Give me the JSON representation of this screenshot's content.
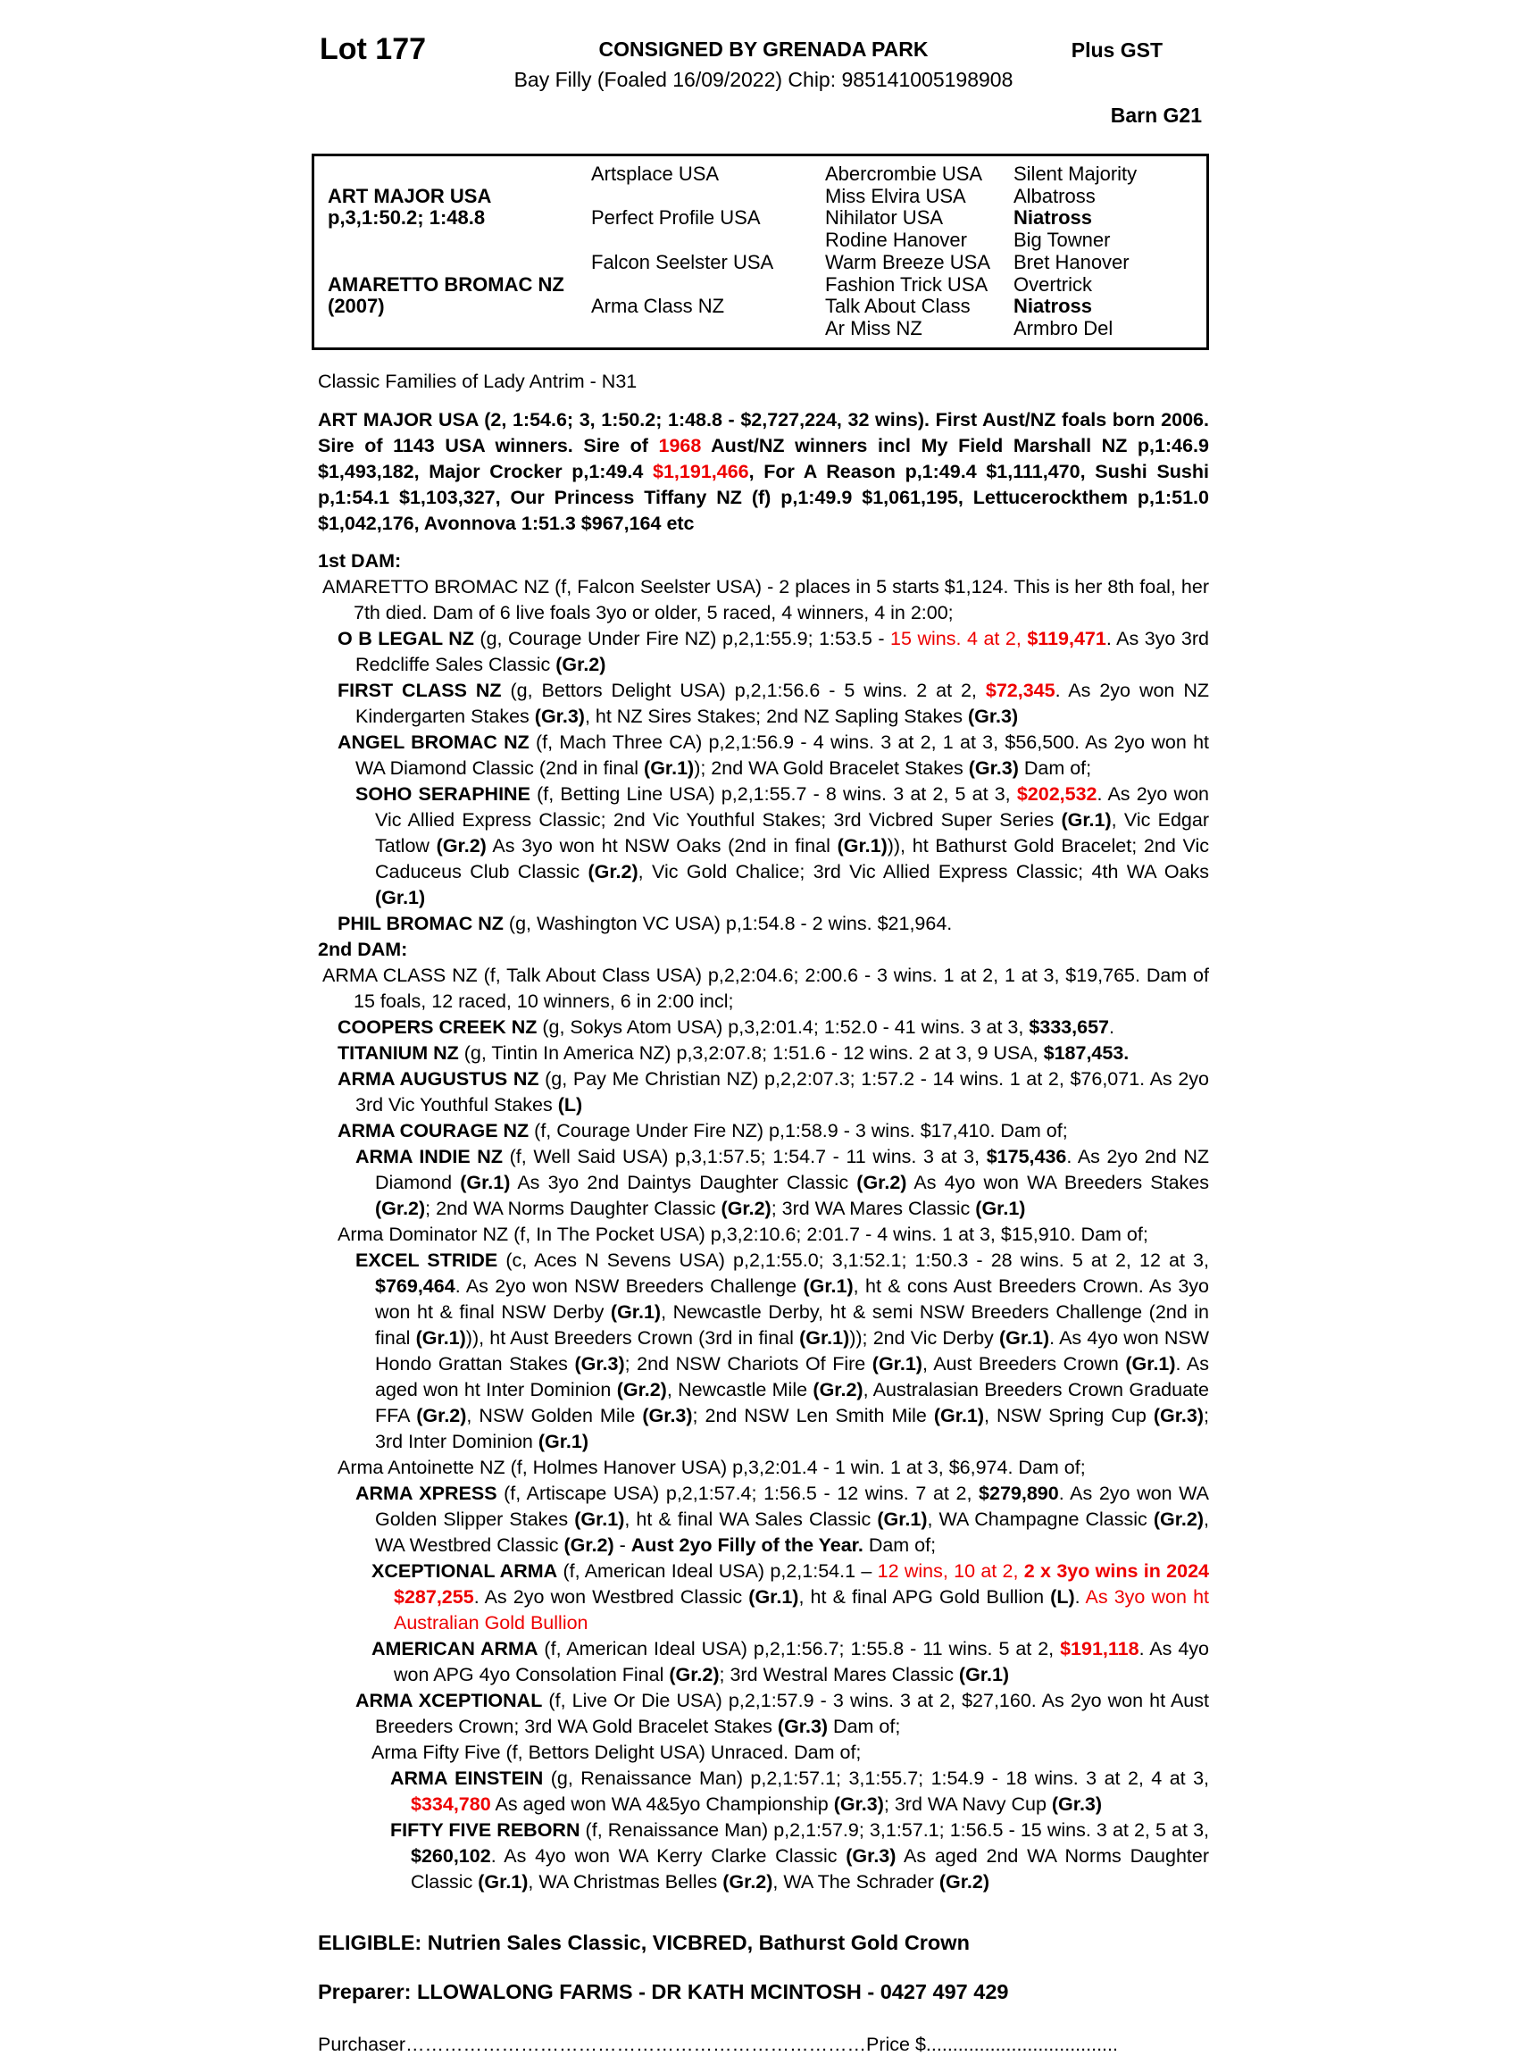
{
  "colors": {
    "accent_red": "#ee0000",
    "text": "#000000",
    "background": "#ffffff"
  },
  "header": {
    "lot": "Lot 177",
    "consigned": "CONSIGNED BY GRENADA PARK",
    "plus_gst": "Plus GST",
    "foal_line": "Bay Filly (Foaled 16/09/2022) Chip: 985141005198908",
    "barn": "Barn G21"
  },
  "pedigree": {
    "rows": [
      [
        "",
        "Artsplace USA",
        "Abercrombie USA",
        "Silent Majority"
      ],
      [
        "ART MAJOR USA",
        "",
        "Miss Elvira USA",
        "Albatross"
      ],
      [
        "p,3,1:50.2; 1:48.8",
        "Perfect Profile USA",
        "Nihilator USA",
        "Niatross"
      ],
      [
        "",
        "",
        "Rodine Hanover",
        "Big Towner"
      ],
      [
        "",
        "Falcon Seelster USA",
        "Warm Breeze USA",
        "Bret Hanover"
      ],
      [
        "AMARETTO BROMAC NZ",
        "",
        "Fashion Trick USA",
        "Overtrick"
      ],
      [
        "(2007)",
        "Arma Class NZ",
        "Talk About Class",
        "Niatross"
      ],
      [
        "",
        "",
        "Ar Miss NZ",
        "Armbro Del"
      ]
    ]
  },
  "family_line": "Classic Families of Lady Antrim - N31",
  "sire_paragraph": [
    {
      "t": "ART MAJOR USA (2, 1:54.6; 3, 1:50.2; 1:48.8 - $2,727,224, 32 wins). First Aust/NZ foals born 2006. Sire of 1143 USA winners. Sire of ",
      "b": true
    },
    {
      "t": "1968",
      "b": true,
      "r": true
    },
    {
      "t": " Aust/NZ winners incl My Field Marshall NZ p,1:46.9 $1,493,182, Major Crocker p,1:49.4 ",
      "b": true
    },
    {
      "t": "$1,191,466",
      "b": true,
      "r": true
    },
    {
      "t": ", For A Reason p,1:49.4 $1,111,470, Sushi Sushi p,1:54.1 $1,103,327, Our Princess Tiffany NZ (f) p,1:49.9 $1,061,195, Lettucerockthem p,1:51.0 $1,042,176, Avonnova 1:51.3 $967,164 etc",
      "b": true
    }
  ],
  "dams": [
    {
      "heading": "1st DAM:",
      "entries": [
        {
          "segments": [
            {
              "t": "AMARETTO BROMAC NZ (f, Falcon Seelster USA) - 2 places in 5 starts $1,124. This is her 8th foal, her 7th died. Dam of 6 live foals 3yo or older, 5 raced, 4 winners, 4 in 2:00;"
            }
          ]
        },
        {
          "segments": [
            {
              "t": "O B LEGAL NZ",
              "b": true
            },
            {
              "t": " (g, Courage Under Fire NZ) p,2,1:55.9; 1:53.5 - "
            },
            {
              "t": "15 wins. 4 at 2, ",
              "r": true
            },
            {
              "t": "$119,471",
              "b": true,
              "r": true
            },
            {
              "t": ". As 3yo 3rd Redcliffe Sales Classic "
            },
            {
              "t": "(Gr.2)",
              "b": true
            }
          ]
        },
        {
          "segments": [
            {
              "t": "FIRST CLASS NZ",
              "b": true
            },
            {
              "t": " (g, Bettors Delight USA) p,2,1:56.6 - 5 wins. 2 at 2, "
            },
            {
              "t": "$72,345",
              "b": true,
              "r": true
            },
            {
              "t": ". As 2yo won NZ Kindergarten Stakes "
            },
            {
              "t": "(Gr.3)",
              "b": true
            },
            {
              "t": ", ht NZ Sires Stakes; 2nd NZ Sapling Stakes "
            },
            {
              "t": "(Gr.3)",
              "b": true
            }
          ]
        },
        {
          "segments": [
            {
              "t": "ANGEL BROMAC NZ",
              "b": true
            },
            {
              "t": " (f, Mach Three CA) p,2,1:56.9 - 4 wins. 3 at 2, 1 at 3, $56,500. As 2yo won ht WA Diamond Classic (2nd in final "
            },
            {
              "t": "(Gr.1)",
              "b": true
            },
            {
              "t": "); 2nd WA Gold Bracelet Stakes "
            },
            {
              "t": "(Gr.3)",
              "b": true
            },
            {
              "t": " Dam of;"
            }
          ]
        },
        {
          "segments": [
            {
              "t": "SOHO SERAPHINE",
              "b": true
            },
            {
              "t": " (f, Betting Line USA) p,2,1:55.7 - 8 wins. 3 at 2, 5 at 3, "
            },
            {
              "t": "$202,532",
              "b": true,
              "r": true
            },
            {
              "t": ". As 2yo won Vic Allied Express Classic; 2nd Vic Youthful Stakes; 3rd Vicbred Super Series "
            },
            {
              "t": "(Gr.1)",
              "b": true
            },
            {
              "t": ", Vic Edgar Tatlow "
            },
            {
              "t": "(Gr.2)",
              "b": true
            },
            {
              "t": " As 3yo won ht NSW Oaks (2nd in final "
            },
            {
              "t": "(Gr.1)",
              "b": true
            },
            {
              "t": ")), ht Bathurst Gold Bracelet; 2nd Vic Caduceus Club Classic "
            },
            {
              "t": "(Gr.2)",
              "b": true
            },
            {
              "t": ", Vic Gold Chalice; 3rd Vic Allied Express Classic; 4th WA Oaks "
            },
            {
              "t": "(Gr.1)",
              "b": true
            }
          ]
        },
        {
          "segments": [
            {
              "t": "PHIL BROMAC NZ",
              "b": true
            },
            {
              "t": " (g, Washington VC USA) p,1:54.8 - 2 wins. $21,964."
            }
          ]
        }
      ]
    },
    {
      "heading": "2nd DAM:",
      "entries": [
        {
          "segments": [
            {
              "t": "ARMA CLASS NZ (f, Talk About Class USA) p,2,2:04.6; 2:00.6 - 3 wins. 1 at 2, 1 at 3, $19,765. Dam of 15 foals, 12 raced, 10 winners, 6 in 2:00 incl;"
            }
          ]
        },
        {
          "segments": [
            {
              "t": "COOPERS CREEK NZ",
              "b": true
            },
            {
              "t": " (g, Sokys Atom USA) p,3,2:01.4; 1:52.0 - 41 wins. 3 at 3, "
            },
            {
              "t": "$333,657",
              "b": true
            },
            {
              "t": "."
            }
          ]
        },
        {
          "segments": [
            {
              "t": "TITANIUM NZ",
              "b": true
            },
            {
              "t": " (g, Tintin In America NZ) p,3,2:07.8; 1:51.6 - 12 wins. 2 at 3, 9 USA, "
            },
            {
              "t": "$187,453.",
              "b": true
            }
          ]
        },
        {
          "segments": [
            {
              "t": "ARMA AUGUSTUS NZ",
              "b": true
            },
            {
              "t": " (g, Pay Me Christian NZ) p,2,2:07.3; 1:57.2 - 14 wins. 1 at 2, $76,071. As 2yo 3rd Vic Youthful Stakes "
            },
            {
              "t": "(L)",
              "b": true
            }
          ]
        },
        {
          "segments": [
            {
              "t": "ARMA COURAGE NZ",
              "b": true
            },
            {
              "t": " (f, Courage Under Fire NZ) p,1:58.9 - 3 wins. $17,410. Dam of;"
            }
          ]
        },
        {
          "segments": [
            {
              "t": "ARMA INDIE NZ",
              "b": true
            },
            {
              "t": " (f, Well Said USA) p,3,1:57.5; 1:54.7 - 11 wins. 3 at 3, "
            },
            {
              "t": "$175,436",
              "b": true
            },
            {
              "t": ". As 2yo 2nd NZ Diamond "
            },
            {
              "t": "(Gr.1)",
              "b": true
            },
            {
              "t": " As 3yo 2nd Daintys Daughter Classic "
            },
            {
              "t": "(Gr.2)",
              "b": true
            },
            {
              "t": " As 4yo won WA Breeders Stakes "
            },
            {
              "t": "(Gr.2)",
              "b": true
            },
            {
              "t": "; 2nd WA Norms Daughter Classic "
            },
            {
              "t": "(Gr.2)",
              "b": true
            },
            {
              "t": "; 3rd WA Mares Classic "
            },
            {
              "t": "(Gr.1)",
              "b": true
            }
          ]
        },
        {
          "segments": [
            {
              "t": "Arma Dominator NZ (f, In The Pocket USA) p,3,2:10.6; 2:01.7 - 4 wins. 1 at 3, $15,910. Dam of;"
            }
          ]
        },
        {
          "segments": [
            {
              "t": "EXCEL STRIDE",
              "b": true
            },
            {
              "t": " (c, Aces N Sevens USA) p,2,1:55.0; 3,1:52.1; 1:50.3 - 28 wins. 5 at 2, 12 at 3, "
            },
            {
              "t": "$769,464",
              "b": true
            },
            {
              "t": ". As 2yo won NSW Breeders Challenge "
            },
            {
              "t": "(Gr.1)",
              "b": true
            },
            {
              "t": ", ht & cons Aust Breeders Crown. As 3yo won ht & final NSW Derby "
            },
            {
              "t": "(Gr.1)",
              "b": true
            },
            {
              "t": ", Newcastle Derby, ht & semi NSW Breeders Challenge (2nd in final "
            },
            {
              "t": "(Gr.1)",
              "b": true
            },
            {
              "t": ")), ht Aust Breeders Crown (3rd in final "
            },
            {
              "t": "(Gr.1)",
              "b": true
            },
            {
              "t": ")); 2nd Vic Derby "
            },
            {
              "t": "(Gr.1)",
              "b": true
            },
            {
              "t": ". As 4yo won NSW Hondo Grattan Stakes "
            },
            {
              "t": "(Gr.3)",
              "b": true
            },
            {
              "t": "; 2nd NSW Chariots Of Fire "
            },
            {
              "t": "(Gr.1)",
              "b": true
            },
            {
              "t": ", Aust Breeders Crown "
            },
            {
              "t": "(Gr.1)",
              "b": true
            },
            {
              "t": ". As aged won ht Inter Dominion "
            },
            {
              "t": "(Gr.2)",
              "b": true
            },
            {
              "t": ", Newcastle Mile "
            },
            {
              "t": "(Gr.2)",
              "b": true
            },
            {
              "t": ", Australasian Breeders Crown Graduate FFA "
            },
            {
              "t": "(Gr.2)",
              "b": true
            },
            {
              "t": ", NSW Golden Mile "
            },
            {
              "t": "(Gr.3)",
              "b": true
            },
            {
              "t": "; 2nd NSW Len Smith Mile "
            },
            {
              "t": "(Gr.1)",
              "b": true
            },
            {
              "t": ", NSW Spring Cup "
            },
            {
              "t": "(Gr.3)",
              "b": true
            },
            {
              "t": "; 3rd Inter Dominion "
            },
            {
              "t": "(Gr.1)",
              "b": true
            }
          ]
        },
        {
          "segments": [
            {
              "t": "Arma Antoinette NZ (f, Holmes Hanover USA) p,3,2:01.4 - 1 win. 1 at 3, $6,974. Dam of;"
            }
          ]
        },
        {
          "segments": [
            {
              "t": "ARMA XPRESS",
              "b": true
            },
            {
              "t": " (f, Artiscape USA) p,2,1:57.4; 1:56.5 - 12 wins. 7 at 2, "
            },
            {
              "t": "$279,890",
              "b": true
            },
            {
              "t": ". As 2yo won WA Golden Slipper Stakes "
            },
            {
              "t": "(Gr.1)",
              "b": true
            },
            {
              "t": ", ht & final WA Sales Classic "
            },
            {
              "t": "(Gr.1)",
              "b": true
            },
            {
              "t": ", WA Champagne Classic "
            },
            {
              "t": "(Gr.2)",
              "b": true
            },
            {
              "t": ", WA Westbred Classic "
            },
            {
              "t": "(Gr.2)",
              "b": true
            },
            {
              "t": " - "
            },
            {
              "t": "Aust 2yo Filly of the Year.",
              "b": true
            },
            {
              "t": " Dam of;"
            }
          ]
        },
        {
          "segments": [
            {
              "t": "XCEPTIONAL ARMA",
              "b": true
            },
            {
              "t": " (f, American Ideal USA) p,2,1:54.1 – "
            },
            {
              "t": "12 wins, 10 at 2, ",
              "r": true
            },
            {
              "t": "2 x 3yo wins in 2024 $287,255",
              "b": true,
              "r": true
            },
            {
              "t": ". As 2yo won Westbred Classic "
            },
            {
              "t": "(Gr.1)",
              "b": true
            },
            {
              "t": ", ht & final APG Gold Bullion "
            },
            {
              "t": "(L)",
              "b": true
            },
            {
              "t": ". "
            },
            {
              "t": "As 3yo won ht Australian Gold Bullion",
              "r": true
            }
          ]
        },
        {
          "segments": [
            {
              "t": "AMERICAN ARMA",
              "b": true
            },
            {
              "t": " (f, American Ideal USA) p,2,1:56.7; 1:55.8 - 11 wins. 5 at 2, "
            },
            {
              "t": "$191,118",
              "b": true,
              "r": true
            },
            {
              "t": ". As 4yo won APG 4yo Consolation Final "
            },
            {
              "t": "(Gr.2)",
              "b": true
            },
            {
              "t": "; 3rd Westral Mares Classic "
            },
            {
              "t": "(Gr.1)",
              "b": true
            }
          ]
        },
        {
          "segments": [
            {
              "t": "ARMA XCEPTIONAL",
              "b": true
            },
            {
              "t": " (f, Live Or Die USA) p,2,1:57.9 - 3 wins. 3 at 2, $27,160. As 2yo won ht Aust Breeders Crown; 3rd WA Gold Bracelet Stakes "
            },
            {
              "t": "(Gr.3)",
              "b": true
            },
            {
              "t": " Dam of;"
            }
          ]
        },
        {
          "segments": [
            {
              "t": "Arma Fifty Five (f, Bettors Delight USA) Unraced. Dam of;"
            }
          ]
        },
        {
          "segments": [
            {
              "t": "ARMA EINSTEIN",
              "b": true
            },
            {
              "t": " (g, Renaissance Man) p,2,1:57.1; 3,1:55.7; 1:54.9 - 18 wins. 3 at 2, 4 at 3, "
            },
            {
              "t": "$334,780",
              "b": true,
              "r": true
            },
            {
              "t": " As aged won WA 4&5yo Championship "
            },
            {
              "t": "(Gr.3)",
              "b": true
            },
            {
              "t": "; 3rd WA Navy Cup "
            },
            {
              "t": "(Gr.3)",
              "b": true
            }
          ]
        },
        {
          "segments": [
            {
              "t": "FIFTY FIVE REBORN",
              "b": true
            },
            {
              "t": " (f, Renaissance Man) p,2,1:57.9; 3,1:57.1; 1:56.5 - 15 wins. 3 at 2, 5 at 3, "
            },
            {
              "t": "$260,102",
              "b": true
            },
            {
              "t": ". As 4yo won WA Kerry Clarke Classic "
            },
            {
              "t": "(Gr.3)",
              "b": true
            },
            {
              "t": " As aged 2nd WA Norms Daughter Classic "
            },
            {
              "t": "(Gr.1)",
              "b": true
            },
            {
              "t": ", WA Christmas Belles "
            },
            {
              "t": "(Gr.2)",
              "b": true
            },
            {
              "t": ", WA The Schrader "
            },
            {
              "t": "(Gr.2)",
              "b": true
            }
          ]
        }
      ]
    }
  ],
  "footer": {
    "eligible": "ELIGIBLE: Nutrien Sales Classic, VICBRED, Bathurst Gold Crown",
    "preparer": "Preparer: LLOWALONG FARMS - DR KATH MCINTOSH - 0427 497 429",
    "purchaser_label": "Purchaser",
    "purchaser_dots": "………………………………………………………………",
    "price_label": "Price $",
    "price_dots": "...................................."
  }
}
